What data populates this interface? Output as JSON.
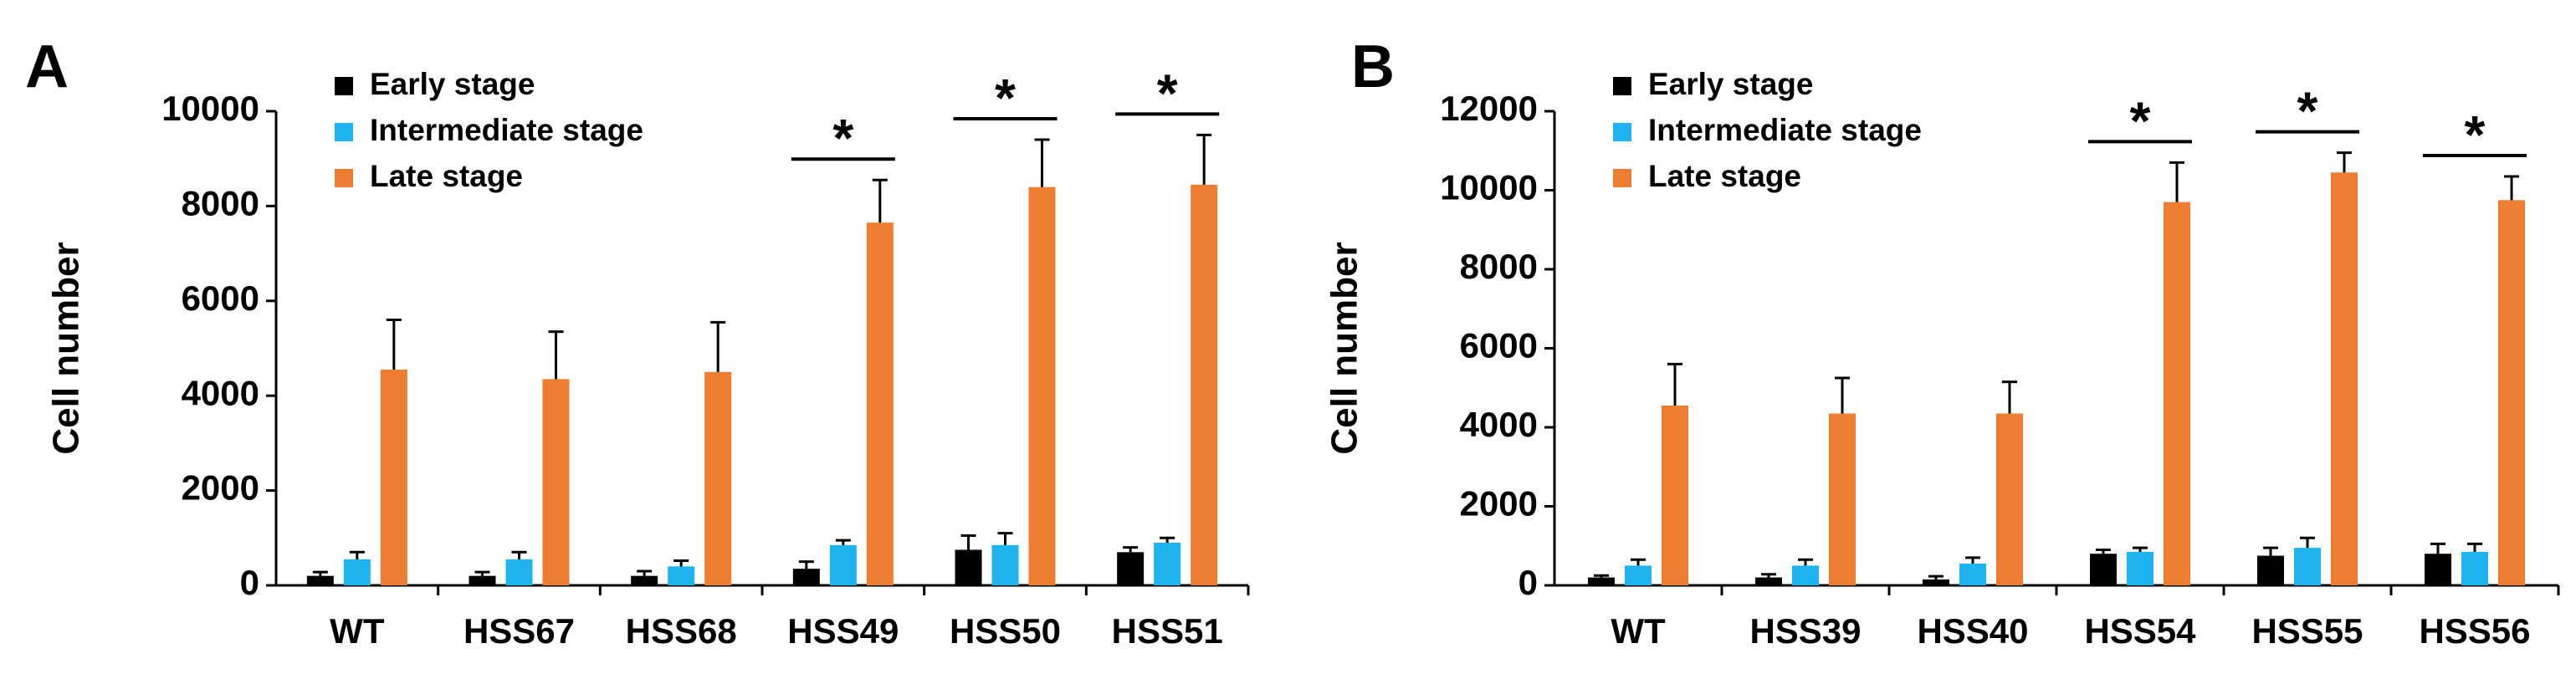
{
  "chart_data": [
    {
      "type": "bar",
      "panel": "A",
      "ylabel": "Cell number",
      "categories": [
        "WT",
        "HSS67",
        "HSS68",
        "HSS49",
        "HSS50",
        "HSS51"
      ],
      "series": [
        {
          "name": "Early stage",
          "color": "#000000",
          "values": [
            200,
            200,
            200,
            350,
            750,
            700
          ],
          "errors": [
            80,
            80,
            100,
            150,
            300,
            100
          ]
        },
        {
          "name": "Intermediate stage",
          "color": "#1fb4f0",
          "values": [
            550,
            550,
            400,
            850,
            850,
            900
          ],
          "errors": [
            150,
            150,
            120,
            100,
            250,
            100
          ]
        },
        {
          "name": "Late stage",
          "color": "#ed7d31",
          "values": [
            4550,
            4350,
            4500,
            7650,
            8400,
            8450
          ],
          "errors": [
            1050,
            1000,
            1050,
            900,
            1000,
            1050
          ]
        }
      ],
      "ylim": [
        0,
        10000
      ],
      "yticks": [
        0,
        2000,
        4000,
        6000,
        8000,
        10000
      ],
      "significance": [
        {
          "category": "HSS49",
          "label": "*"
        },
        {
          "category": "HSS50",
          "label": "*"
        },
        {
          "category": "HSS51",
          "label": "*"
        }
      ]
    },
    {
      "type": "bar",
      "panel": "B",
      "ylabel": "Cell number",
      "categories": [
        "WT",
        "HSS39",
        "HSS40",
        "HSS54",
        "HSS55",
        "HSS56"
      ],
      "series": [
        {
          "name": "Early stage",
          "color": "#000000",
          "values": [
            200,
            200,
            150,
            800,
            750,
            800
          ],
          "errors": [
            50,
            80,
            80,
            100,
            200,
            250
          ]
        },
        {
          "name": "Intermediate stage",
          "color": "#1fb4f0",
          "values": [
            500,
            500,
            550,
            850,
            950,
            850
          ],
          "errors": [
            150,
            150,
            150,
            100,
            250,
            200
          ]
        },
        {
          "name": "Late stage",
          "color": "#ed7d31",
          "values": [
            4550,
            4350,
            4350,
            9700,
            10450,
            9750
          ],
          "errors": [
            1050,
            900,
            800,
            1000,
            500,
            600
          ]
        }
      ],
      "ylim": [
        0,
        12000
      ],
      "yticks": [
        0,
        2000,
        4000,
        6000,
        8000,
        10000,
        12000
      ],
      "significance": [
        {
          "category": "HSS54",
          "label": "*"
        },
        {
          "category": "HSS55",
          "label": "*"
        },
        {
          "category": "HSS56",
          "label": "*"
        }
      ]
    }
  ]
}
